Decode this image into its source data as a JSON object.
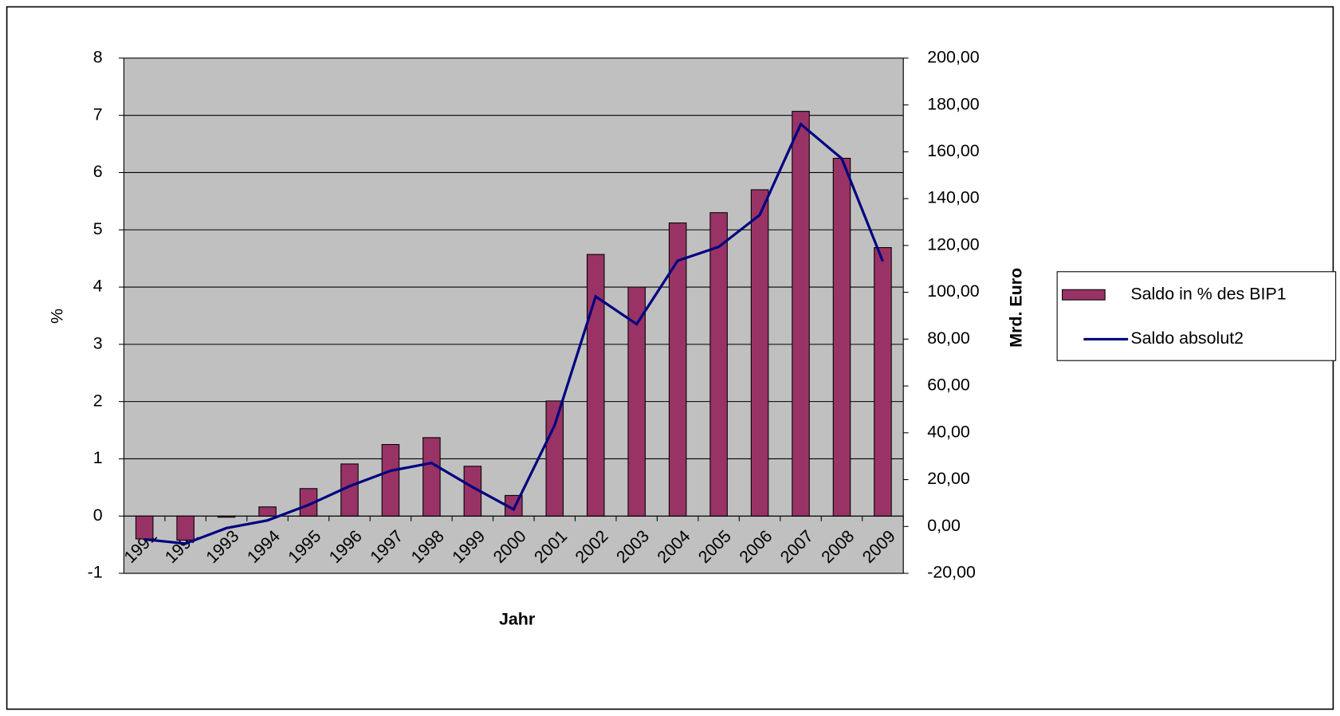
{
  "chart_data": {
    "type": "bar",
    "categories": [
      "1991",
      "1992",
      "1993",
      "1994",
      "1995",
      "1996",
      "1997",
      "1998",
      "1999",
      "2000",
      "2001",
      "2002",
      "2003",
      "2004",
      "2005",
      "2006",
      "2007",
      "2008",
      "2009"
    ],
    "series": [
      {
        "name": "Saldo in % des BIP1",
        "type": "bar",
        "color": "#993366",
        "values": [
          -0.4,
          -0.42,
          -0.02,
          0.16,
          0.48,
          0.91,
          1.25,
          1.37,
          0.87,
          0.36,
          2.01,
          4.57,
          4.0,
          5.12,
          5.3,
          5.7,
          7.07,
          6.25,
          4.69
        ]
      },
      {
        "name": "Saldo absolut2",
        "type": "line",
        "axis": "y2",
        "color": "#000080",
        "values": [
          -5.5,
          -7.3,
          -0.7,
          2.6,
          9.2,
          17.2,
          23.8,
          27.1,
          16.8,
          7.3,
          43.2,
          98.2,
          86.4,
          113.5,
          119.4,
          133,
          171.8,
          157.1,
          113.2
        ]
      }
    ],
    "xlabel": "Jahr",
    "ylabel": "%",
    "y2label": "Mrd. Euro",
    "ylim": [
      -1,
      8
    ],
    "yticks": [
      -1,
      0,
      1,
      2,
      3,
      4,
      5,
      6,
      7,
      8
    ],
    "y2lim": [
      -20,
      200
    ],
    "y2ticks": [
      {
        "value": -20,
        "label": "-20,00"
      },
      {
        "value": 0,
        "label": "0,00"
      },
      {
        "value": 20,
        "label": "20,00"
      },
      {
        "value": 40,
        "label": "40,00"
      },
      {
        "value": 60,
        "label": "60,00"
      },
      {
        "value": 80,
        "label": "80,00"
      },
      {
        "value": 100,
        "label": "100,00"
      },
      {
        "value": 120,
        "label": "120,00"
      },
      {
        "value": 140,
        "label": "140,00"
      },
      {
        "value": 160,
        "label": "160,00"
      },
      {
        "value": 180,
        "label": "180,00"
      },
      {
        "value": 200,
        "label": "200,00"
      }
    ],
    "grid": true,
    "legend": "right",
    "plot_background": "#c0c0c0"
  }
}
